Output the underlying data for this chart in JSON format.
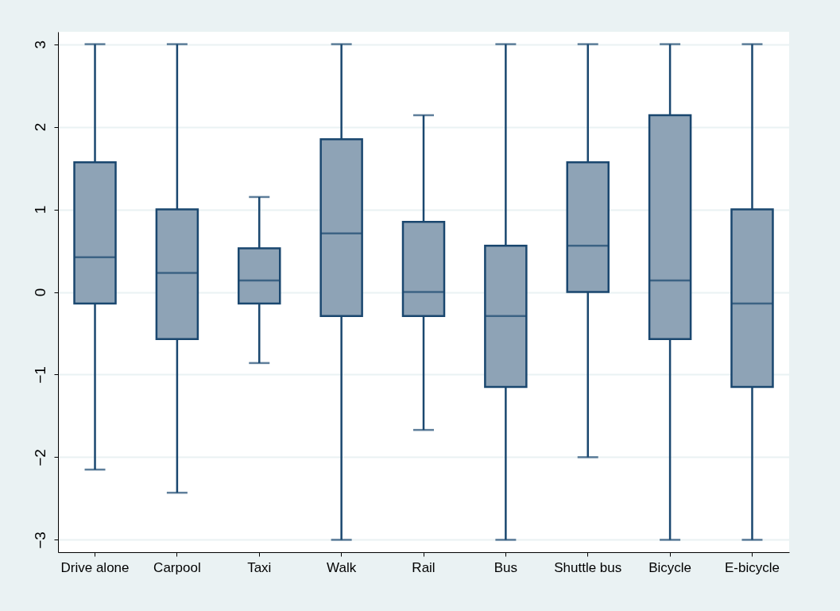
{
  "chart_data": {
    "type": "box",
    "categories": [
      "Drive alone",
      "Carpool",
      "Taxi",
      "Walk",
      "Rail",
      "Bus",
      "Shuttle bus",
      "Bicycle",
      "E-bicycle"
    ],
    "boxes": [
      {
        "low": -2.15,
        "q1": -0.14,
        "median": 0.42,
        "q3": 1.57,
        "high": 3
      },
      {
        "low": -2.43,
        "q1": -0.57,
        "median": 0.23,
        "q3": 1.0,
        "high": 3
      },
      {
        "low": -0.86,
        "q1": -0.14,
        "median": 0.14,
        "q3": 0.53,
        "high": 1.15
      },
      {
        "low": -3,
        "q1": -0.29,
        "median": 0.71,
        "q3": 1.85,
        "high": 3
      },
      {
        "low": -1.67,
        "q1": -0.29,
        "median": 0,
        "q3": 0.85,
        "high": 2.14
      },
      {
        "low": -3,
        "q1": -1.15,
        "median": -0.29,
        "q3": 0.56,
        "high": 3
      },
      {
        "low": -2.0,
        "q1": 0,
        "median": 0.56,
        "q3": 1.57,
        "high": 3
      },
      {
        "low": -3,
        "q1": -0.57,
        "median": 0.14,
        "q3": 2.14,
        "high": 3
      },
      {
        "low": -3,
        "q1": -1.15,
        "median": -0.14,
        "q3": 1.0,
        "high": 3
      }
    ],
    "color": "#8ea3b6",
    "ylim": [
      -3.15,
      3.15
    ],
    "yticks": [
      -3,
      -2,
      -1,
      0,
      1,
      2,
      3
    ],
    "grid": "y"
  }
}
